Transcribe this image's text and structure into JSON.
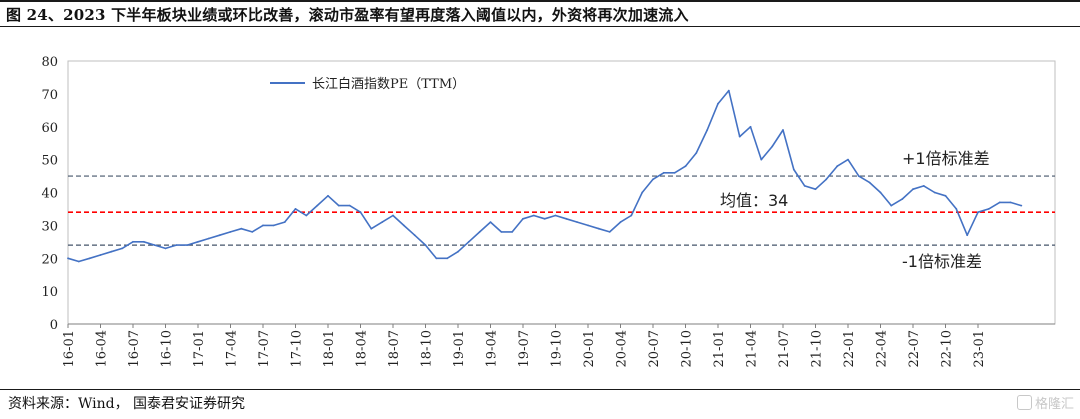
{
  "figure": {
    "title": "图 24、2023 下半年板块业绩或环比改善，滚动市盈率有望再度落入阈值以内，外资将再次加速流入",
    "source": "资料来源：Wind，  国泰君安证券研究",
    "watermark": "格隆汇"
  },
  "chart_data": {
    "type": "line",
    "title": "",
    "xlabel": "",
    "ylabel": "",
    "ylim": [
      0,
      80
    ],
    "yticks": [
      0,
      10,
      20,
      30,
      40,
      50,
      60,
      70,
      80
    ],
    "x_tick_labels": [
      "16-01",
      "16-04",
      "16-07",
      "16-10",
      "17-01",
      "17-04",
      "17-07",
      "17-10",
      "18-01",
      "18-04",
      "18-07",
      "18-10",
      "19-01",
      "19-04",
      "19-07",
      "19-10",
      "20-01",
      "20-04",
      "20-07",
      "20-10",
      "21-01",
      "21-04",
      "21-07",
      "21-10",
      "22-01",
      "22-04",
      "22-07",
      "22-10",
      "23-01"
    ],
    "grid": false,
    "legend_position": "top-left",
    "series": [
      {
        "name": "长江白酒指数PE（TTM）",
        "color": "#4472c4",
        "x": [
          "16-01",
          "16-02",
          "16-03",
          "16-04",
          "16-05",
          "16-06",
          "16-07",
          "16-08",
          "16-09",
          "16-10",
          "16-11",
          "16-12",
          "17-01",
          "17-02",
          "17-03",
          "17-04",
          "17-05",
          "17-06",
          "17-07",
          "17-08",
          "17-09",
          "17-10",
          "17-11",
          "17-12",
          "18-01",
          "18-02",
          "18-03",
          "18-04",
          "18-05",
          "18-06",
          "18-07",
          "18-08",
          "18-09",
          "18-10",
          "18-11",
          "18-12",
          "19-01",
          "19-02",
          "19-03",
          "19-04",
          "19-05",
          "19-06",
          "19-07",
          "19-08",
          "19-09",
          "19-10",
          "19-11",
          "19-12",
          "20-01",
          "20-02",
          "20-03",
          "20-04",
          "20-05",
          "20-06",
          "20-07",
          "20-08",
          "20-09",
          "20-10",
          "20-11",
          "20-12",
          "21-01",
          "21-02",
          "21-03",
          "21-04",
          "21-05",
          "21-06",
          "21-07",
          "21-08",
          "21-09",
          "21-10",
          "21-11",
          "21-12",
          "22-01",
          "22-02",
          "22-03",
          "22-04",
          "22-05",
          "22-06",
          "22-07",
          "22-08",
          "22-09",
          "22-10",
          "22-11",
          "22-12",
          "23-01",
          "23-02",
          "23-03",
          "23-04",
          "23-05"
        ],
        "values": [
          20,
          19,
          20,
          21,
          22,
          23,
          25,
          25,
          24,
          23,
          24,
          24,
          25,
          26,
          27,
          28,
          29,
          28,
          30,
          30,
          31,
          35,
          33,
          36,
          39,
          36,
          36,
          34,
          29,
          31,
          33,
          30,
          27,
          24,
          20,
          20,
          22,
          25,
          28,
          31,
          28,
          28,
          32,
          33,
          32,
          33,
          32,
          31,
          30,
          29,
          28,
          31,
          33,
          40,
          44,
          46,
          46,
          48,
          52,
          59,
          67,
          71,
          57,
          60,
          50,
          54,
          59,
          47,
          42,
          41,
          44,
          48,
          50,
          45,
          43,
          40,
          36,
          38,
          41,
          42,
          40,
          39,
          35,
          27,
          34,
          35,
          37,
          37,
          36
        ]
      }
    ],
    "reference_lines": [
      {
        "value": 45,
        "label": "+1倍标准差",
        "color": "#44546a",
        "style": "dashed"
      },
      {
        "value": 34,
        "label": "均值：34",
        "color": "#ff0000",
        "style": "dashed"
      },
      {
        "value": 24,
        "label": "-1倍标准差",
        "color": "#44546a",
        "style": "dashed"
      }
    ]
  }
}
